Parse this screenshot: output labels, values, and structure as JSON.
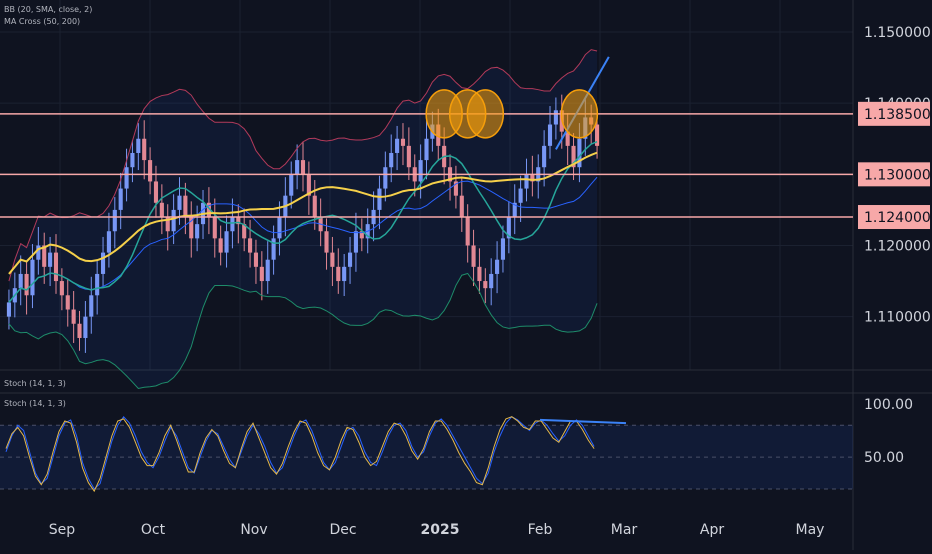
{
  "indicators": {
    "bb": "BB (20, SMA, close, 2)",
    "ma": "MA Cross (50, 200)",
    "stoch_top": "Stoch (14, 1, 3)",
    "stoch_bottom": "Stoch (14, 1, 3)"
  },
  "chart_data": [
    {
      "type": "candlestick",
      "title": "",
      "y_ticks": [
        1.11,
        1.12,
        1.13,
        1.14,
        1.15
      ],
      "y_tick_labels": [
        "1.110000",
        "1.120000",
        "1.130000",
        "1.140000",
        "1.150000"
      ],
      "ylim": [
        1.1025,
        1.1545
      ],
      "price_lines": [
        {
          "value": 1.1385,
          "label": "1.138500"
        },
        {
          "value": 1.13,
          "label": "1.130000"
        },
        {
          "value": 1.124,
          "label": "1.124000"
        }
      ],
      "x_labels": [
        "Sep",
        "Oct",
        "Nov",
        "Dec",
        "2025",
        "Feb",
        "Mar",
        "Apr",
        "May"
      ],
      "candles_closes": [
        1.112,
        1.114,
        1.116,
        1.113,
        1.118,
        1.12,
        1.117,
        1.119,
        1.115,
        1.113,
        1.111,
        1.109,
        1.107,
        1.11,
        1.113,
        1.116,
        1.119,
        1.122,
        1.125,
        1.128,
        1.131,
        1.133,
        1.135,
        1.132,
        1.129,
        1.126,
        1.124,
        1.122,
        1.125,
        1.127,
        1.124,
        1.121,
        1.123,
        1.126,
        1.124,
        1.121,
        1.119,
        1.122,
        1.124,
        1.123,
        1.121,
        1.119,
        1.117,
        1.115,
        1.118,
        1.121,
        1.124,
        1.127,
        1.13,
        1.132,
        1.13,
        1.127,
        1.124,
        1.122,
        1.119,
        1.117,
        1.115,
        1.117,
        1.119,
        1.122,
        1.121,
        1.123,
        1.125,
        1.128,
        1.131,
        1.133,
        1.135,
        1.134,
        1.131,
        1.129,
        1.132,
        1.135,
        1.137,
        1.134,
        1.131,
        1.129,
        1.127,
        1.124,
        1.12,
        1.117,
        1.115,
        1.114,
        1.116,
        1.118,
        1.121,
        1.124,
        1.126,
        1.128,
        1.13,
        1.129,
        1.131,
        1.134,
        1.137,
        1.139,
        1.136,
        1.134,
        1.131,
        1.135,
        1.138,
        1.137,
        1.134
      ],
      "bollinger": {
        "period": 20,
        "type": "SMA",
        "source": "close",
        "stddev": 2
      },
      "ma_cross": [
        50,
        200
      ]
    },
    {
      "type": "line",
      "title": "",
      "y_ticks": [
        50,
        100
      ],
      "y_tick_labels": [
        "50.00",
        "100.00"
      ],
      "ylim": [
        0,
        100
      ],
      "band": [
        20,
        80
      ],
      "series": [
        {
          "values": [
            55,
            70,
            80,
            75,
            55,
            35,
            25,
            30,
            50,
            70,
            82,
            85,
            70,
            45,
            30,
            20,
            25,
            45,
            65,
            80,
            88,
            82,
            70,
            55,
            45,
            40,
            50,
            65,
            78,
            70,
            55,
            40,
            35,
            50,
            65,
            75,
            72,
            60,
            48,
            40,
            55,
            70,
            80,
            72,
            60,
            45,
            35,
            40,
            55,
            70,
            82,
            85,
            75,
            60,
            45,
            38,
            45,
            60,
            75,
            78,
            70,
            55,
            45,
            42,
            55,
            70,
            80,
            82,
            75,
            60,
            50,
            55,
            70,
            82,
            86,
            80,
            70,
            60,
            50,
            40,
            30,
            25,
            35,
            55,
            70,
            82,
            88,
            85,
            80,
            75,
            82,
            85,
            80,
            72,
            65,
            70,
            80,
            85,
            80,
            70,
            60
          ]
        },
        {
          "values": [
            58,
            72,
            78,
            70,
            50,
            32,
            24,
            34,
            55,
            74,
            84,
            82,
            64,
            40,
            26,
            18,
            30,
            50,
            70,
            84,
            86,
            78,
            64,
            50,
            42,
            42,
            54,
            70,
            80,
            66,
            50,
            36,
            36,
            54,
            68,
            76,
            70,
            56,
            44,
            40,
            58,
            74,
            82,
            68,
            54,
            40,
            34,
            44,
            60,
            74,
            84,
            82,
            70,
            54,
            42,
            38,
            50,
            66,
            78,
            76,
            64,
            50,
            42,
            46,
            60,
            74,
            82,
            80,
            70,
            56,
            48,
            58,
            74,
            84,
            84,
            76,
            66,
            54,
            44,
            36,
            26,
            24,
            40,
            60,
            76,
            86,
            88,
            84,
            78,
            76,
            84,
            84,
            76,
            68,
            64,
            74,
            84,
            84,
            76,
            66,
            58
          ]
        }
      ],
      "trendline": {
        "from": 85,
        "to": 82
      }
    }
  ]
}
